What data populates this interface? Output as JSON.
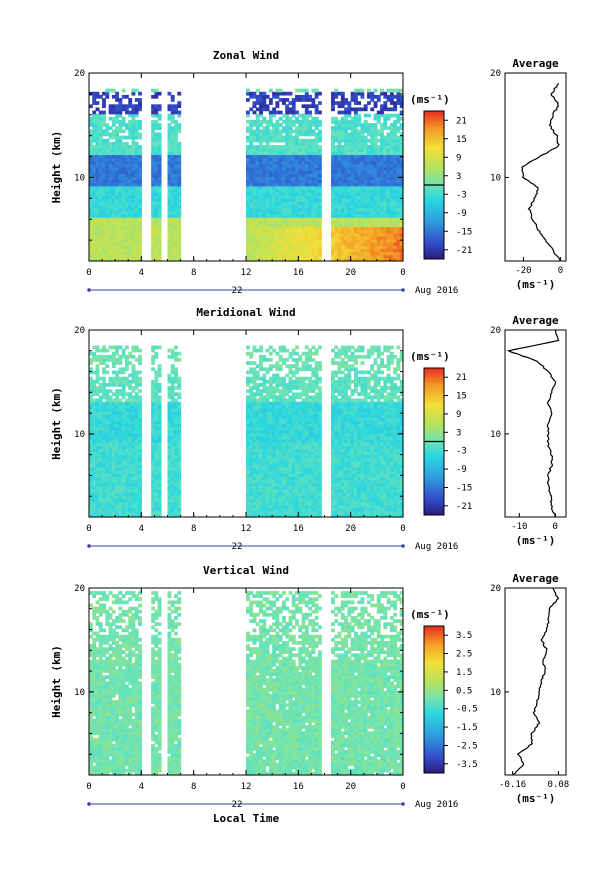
{
  "x_axis_label": "Local Time",
  "height_label": "Height (km)",
  "unit_label": "(ms⁻¹)",
  "date_suffix": "Aug 2016",
  "day_label": "22",
  "panels": [
    {
      "id": "zonal",
      "title": "Zonal Wind",
      "profile_title": "Average",
      "colorbar_ticks": [
        "21",
        "15",
        "9",
        "3",
        "-3",
        "-9",
        "-15",
        "-21"
      ],
      "profile_xticks": [
        "-20",
        "0"
      ]
    },
    {
      "id": "meridional",
      "title": "Meridional Wind",
      "profile_title": "Average",
      "colorbar_ticks": [
        "21",
        "15",
        "9",
        "3",
        "-3",
        "-9",
        "-15",
        "-21"
      ],
      "profile_xticks": [
        "-10",
        "0"
      ]
    },
    {
      "id": "vertical",
      "title": "Vertical Wind",
      "profile_title": "Average",
      "colorbar_ticks": [
        "3.5",
        "2.5",
        "1.5",
        "0.5",
        "-0.5",
        "-1.5",
        "-2.5",
        "-3.5"
      ],
      "profile_xticks": [
        "-0.16",
        "0.08"
      ]
    }
  ],
  "chart_data": [
    {
      "type": "heatmap",
      "title": "Zonal Wind",
      "xlabel": "",
      "ylabel": "Height (km)",
      "xticks": [
        "0",
        "4",
        "8",
        "12",
        "16",
        "20",
        "0"
      ],
      "xlim_hours": [
        0,
        24
      ],
      "yticks": [
        "10",
        "20"
      ],
      "ylim_km": [
        2,
        20
      ],
      "colorbar_unit": "(ms⁻¹)",
      "colorbar_range": [
        -24,
        24
      ],
      "data_gap_hours": [
        [
          4.2,
          4.7
        ],
        [
          5.6,
          5.9
        ],
        [
          7.0,
          11.8
        ],
        [
          17.9,
          18.3
        ]
      ],
      "mean_profile_by_layer": [
        {
          "height_km": [
            2,
            6
          ],
          "value": 6
        },
        {
          "height_km": [
            6,
            9
          ],
          "value": -4
        },
        {
          "height_km": [
            9,
            12
          ],
          "value": -15
        },
        {
          "height_km": [
            12,
            16
          ],
          "value": -2
        },
        {
          "height_km": [
            16,
            18
          ],
          "value": -20
        }
      ]
    },
    {
      "type": "line",
      "title": "Average",
      "xticks": [
        "-20",
        "0"
      ],
      "xlim": [
        -30,
        3
      ],
      "ylim_km": [
        2,
        20
      ],
      "height_km": [
        2,
        3,
        4,
        5,
        6,
        7,
        8,
        9,
        10,
        11,
        12,
        13,
        14,
        15,
        16,
        17,
        18,
        19
      ],
      "values": [
        0,
        -4,
        -8,
        -12,
        -15,
        -17,
        -14,
        -12,
        -20,
        -21,
        -11,
        -1,
        -2,
        -6,
        -4,
        -1,
        -5,
        -1
      ]
    },
    {
      "type": "heatmap",
      "title": "Meridional Wind",
      "xlabel": "",
      "ylabel": "Height (km)",
      "xticks": [
        "0",
        "4",
        "8",
        "12",
        "16",
        "20",
        "0"
      ],
      "xlim_hours": [
        0,
        24
      ],
      "yticks": [
        "10",
        "20"
      ],
      "ylim_km": [
        2,
        20
      ],
      "colorbar_unit": "(ms⁻¹)",
      "colorbar_range": [
        -24,
        24
      ],
      "data_gap_hours": [
        [
          4.2,
          4.7
        ],
        [
          5.6,
          5.9
        ],
        [
          7.0,
          11.8
        ],
        [
          17.9,
          18.3
        ]
      ],
      "mean_profile_by_layer": [
        {
          "height_km": [
            2,
            9
          ],
          "value": -3
        },
        {
          "height_km": [
            9,
            13
          ],
          "value": -4
        },
        {
          "height_km": [
            13,
            16
          ],
          "value": -1
        },
        {
          "height_km": [
            16,
            18
          ],
          "value": 0
        }
      ]
    },
    {
      "type": "line",
      "title": "Average",
      "xticks": [
        "-10",
        "0"
      ],
      "xlim": [
        -14,
        3
      ],
      "ylim_km": [
        2,
        20
      ],
      "height_km": [
        2,
        3,
        4,
        5,
        6,
        7,
        8,
        9,
        10,
        11,
        12,
        13,
        14,
        15,
        16,
        17,
        18,
        19,
        20
      ],
      "values": [
        0,
        -1,
        -1,
        -2,
        -2,
        -1,
        -1,
        -2,
        -2,
        -2,
        -1,
        -2,
        -1,
        0,
        -2,
        -5,
        -13,
        1,
        0
      ]
    },
    {
      "type": "heatmap",
      "title": "Vertical Wind",
      "xlabel": "Local Time",
      "ylabel": "Height (km)",
      "xticks": [
        "0",
        "4",
        "8",
        "12",
        "16",
        "20",
        "0"
      ],
      "xlim_hours": [
        0,
        24
      ],
      "yticks": [
        "10",
        "20"
      ],
      "ylim_km": [
        2,
        20
      ],
      "colorbar_unit": "(ms⁻¹)",
      "colorbar_range": [
        -4,
        4
      ],
      "data_gap_hours": [
        [
          4.2,
          4.7
        ],
        [
          5.6,
          5.9
        ],
        [
          7.0,
          11.8
        ],
        [
          17.9,
          18.3
        ]
      ],
      "mean_profile_by_layer": [
        {
          "height_km": [
            2,
            20
          ],
          "value": 0.1
        }
      ]
    },
    {
      "type": "line",
      "title": "Average",
      "xticks": [
        "-0.16",
        "0.08"
      ],
      "xlim": [
        -0.2,
        0.12
      ],
      "ylim_km": [
        2,
        20
      ],
      "height_km": [
        2,
        3,
        4,
        5,
        6,
        7,
        8,
        9,
        10,
        11,
        12,
        13,
        14,
        15,
        16,
        17,
        18,
        19,
        20
      ],
      "values": [
        -0.16,
        -0.1,
        -0.13,
        -0.06,
        -0.06,
        -0.02,
        -0.05,
        -0.03,
        -0.02,
        -0.01,
        0.01,
        0.0,
        0.02,
        -0.01,
        0.02,
        0.03,
        0.03,
        0.08,
        0.05
      ]
    }
  ]
}
